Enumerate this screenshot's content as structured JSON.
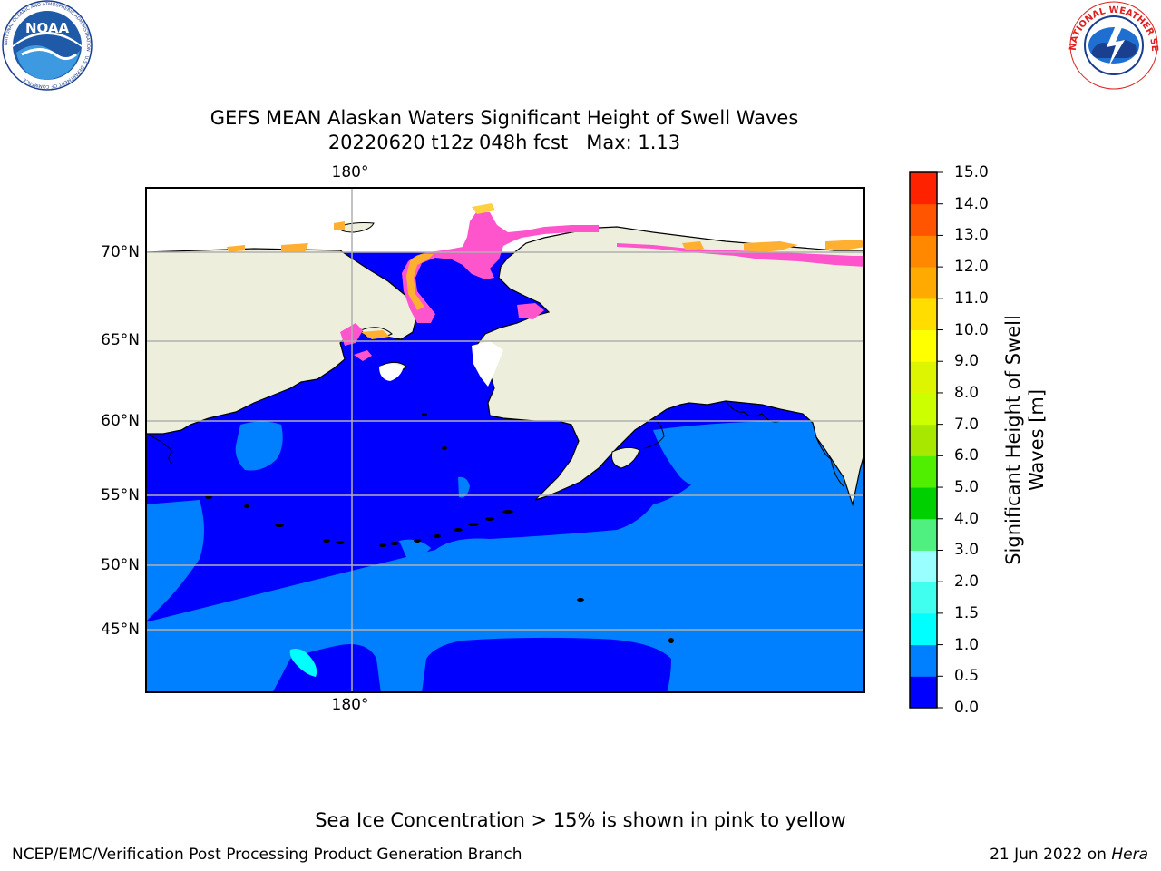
{
  "logos": {
    "noaa_text": "NOAA",
    "noaa_ring_text": "NATIONAL OCEANIC AND ATMOSPHERIC ADMINISTRATION · U.S. DEPARTMENT OF COMMERCE",
    "nws_ring_text": "NATIONAL WEATHER SERVICE"
  },
  "title": {
    "line1": "GEFS MEAN Alaskan Waters Significant Height of Swell Waves",
    "line2": "20220620 t12z 048h fcst   Max: 1.13"
  },
  "map": {
    "lon_label": "180°",
    "lat_labels": [
      "70°N",
      "65°N",
      "60°N",
      "55°N",
      "50°N",
      "45°N"
    ],
    "colors": {
      "land": "#eeeedc",
      "ocean_low": "#0000ff",
      "ocean_mid": "#0080ff",
      "ocean_hi": "#00ffff",
      "ice_pink": "#ff55cc",
      "ice_orange": "#ffb030",
      "ice_yellow": "#ffd040",
      "grid": "#b0b0b0"
    }
  },
  "colorbar": {
    "title_line1": "Significant Height of Swell",
    "title_line2": "Waves [m]",
    "ticks": [
      "0.0",
      "0.5",
      "1.0",
      "1.5",
      "2.0",
      "3.0",
      "4.0",
      "5.0",
      "6.0",
      "7.0",
      "8.0",
      "9.0",
      "10.0",
      "11.0",
      "12.0",
      "13.0",
      "14.0",
      "15.0"
    ],
    "colors": [
      "#0000ff",
      "#0080ff",
      "#00ffff",
      "#40ffee",
      "#99ffff",
      "#50f080",
      "#00d000",
      "#50ee00",
      "#a8e800",
      "#ccff00",
      "#ddf500",
      "#ffff00",
      "#ffdd00",
      "#ffaa00",
      "#ff8800",
      "#ff5500",
      "#ff2200"
    ]
  },
  "footnote": "Sea Ice Concentration > 15% is shown in pink to yellow",
  "credit_left": "NCEP/EMC/Verification Post Processing Product Generation Branch",
  "credit_right_prefix": "21 Jun 2022 on ",
  "credit_right_host": "Hera"
}
